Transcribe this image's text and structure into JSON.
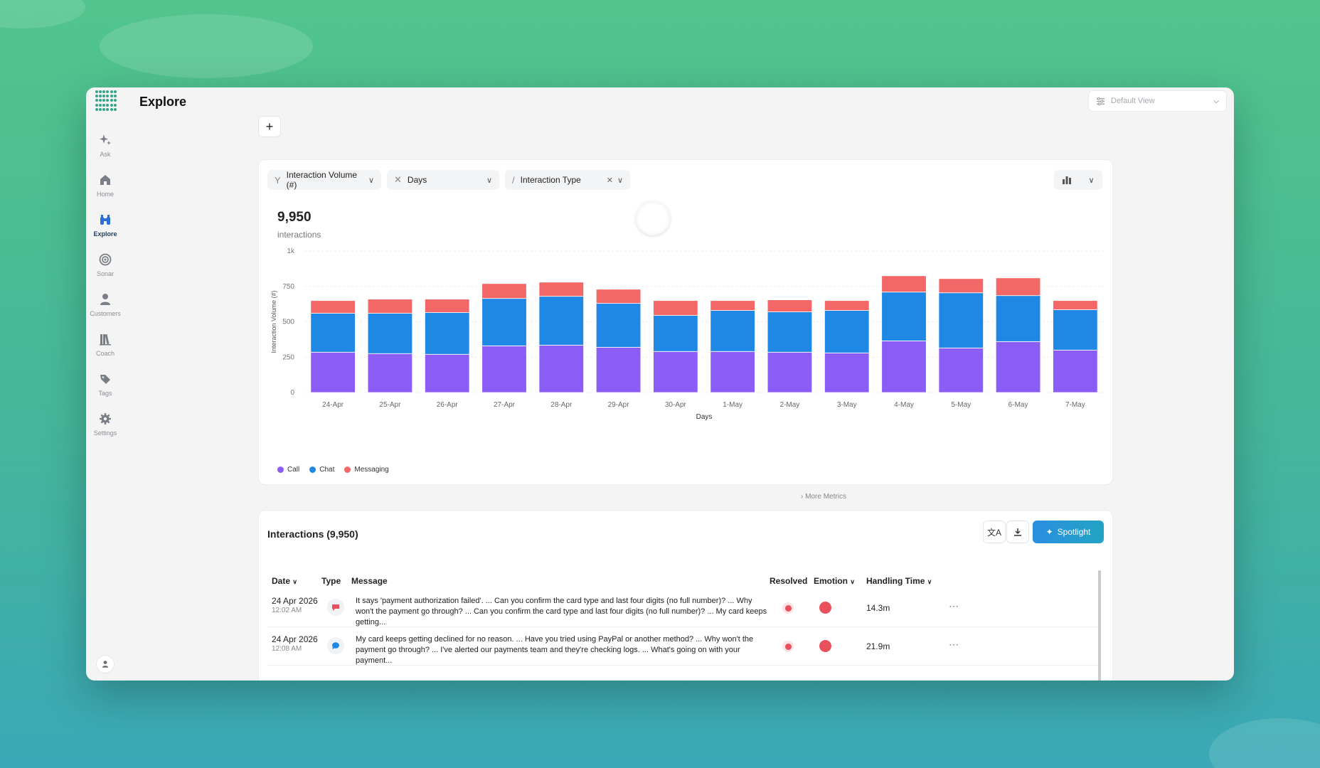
{
  "page": {
    "title": "Explore"
  },
  "view_selector": {
    "label": "Default View"
  },
  "sidebar": {
    "items": [
      {
        "label": "Ask",
        "icon": "sparkle-icon"
      },
      {
        "label": "Home",
        "icon": "home-icon"
      },
      {
        "label": "Explore",
        "icon": "binoculars-icon"
      },
      {
        "label": "Sonar",
        "icon": "target-icon"
      },
      {
        "label": "Customers",
        "icon": "person-icon"
      },
      {
        "label": "Coach",
        "icon": "books-icon"
      },
      {
        "label": "Tags",
        "icon": "tag-icon"
      },
      {
        "label": "Settings",
        "icon": "gear-icon"
      }
    ]
  },
  "toolbar": {
    "add_label": "+"
  },
  "filters": {
    "y_metric": "Interaction Volume (#)",
    "x_dimension": "Days",
    "breakdown": "Interaction Type"
  },
  "summary": {
    "total": "9,950",
    "unit": "interactions"
  },
  "chart_data": {
    "type": "bar",
    "stacked": true,
    "categories": [
      "24-Apr",
      "25-Apr",
      "26-Apr",
      "27-Apr",
      "28-Apr",
      "29-Apr",
      "30-Apr",
      "1-May",
      "2-May",
      "3-May",
      "4-May",
      "5-May",
      "6-May",
      "7-May"
    ],
    "series": [
      {
        "name": "Call",
        "color": "#8b5cf6",
        "values": [
          285,
          275,
          270,
          330,
          335,
          320,
          290,
          290,
          285,
          280,
          365,
          315,
          360,
          300
        ]
      },
      {
        "name": "Chat",
        "color": "#1f88e5",
        "values": [
          275,
          285,
          295,
          335,
          345,
          310,
          255,
          290,
          285,
          300,
          345,
          390,
          325,
          285
        ]
      },
      {
        "name": "Messaging",
        "color": "#f46767",
        "values": [
          90,
          100,
          95,
          105,
          100,
          100,
          105,
          70,
          85,
          70,
          115,
          100,
          125,
          65
        ]
      }
    ],
    "xlabel": "Days",
    "ylabel": "Interaction Volume (#)",
    "ylim": [
      0,
      1000
    ],
    "yticks": [
      "0",
      "250",
      "500",
      "750",
      "1k"
    ],
    "grid": true,
    "legend": "bottom-left"
  },
  "more_metrics": "More Metrics",
  "table": {
    "title": "Interactions (9,950)",
    "spotlight_label": "Spotlight",
    "columns": {
      "date": "Date",
      "type": "Type",
      "message": "Message",
      "resolved": "Resolved",
      "emotion": "Emotion",
      "handling_time": "Handling Time"
    },
    "rows": [
      {
        "date": "24 Apr 2026",
        "time": "12:02 AM",
        "type_color": "#e8505b",
        "message": "It says 'payment authorization failed'. ... Can you confirm the card type and last four digits (no full number)? ... Why won't the payment go through? ... Can you confirm the card type and last four digits (no full number)? ... My card keeps getting...",
        "handling_time": "14.3m"
      },
      {
        "date": "24 Apr 2026",
        "time": "12:08 AM",
        "type_color": "#1f88e5",
        "message": "My card keeps getting declined for no reason. ... Have you tried using PayPal or another method? ... Why won't the payment go through? ... I've alerted our payments team and they're checking logs. ... What's going on with your payment...",
        "handling_time": "21.9m"
      }
    ]
  }
}
